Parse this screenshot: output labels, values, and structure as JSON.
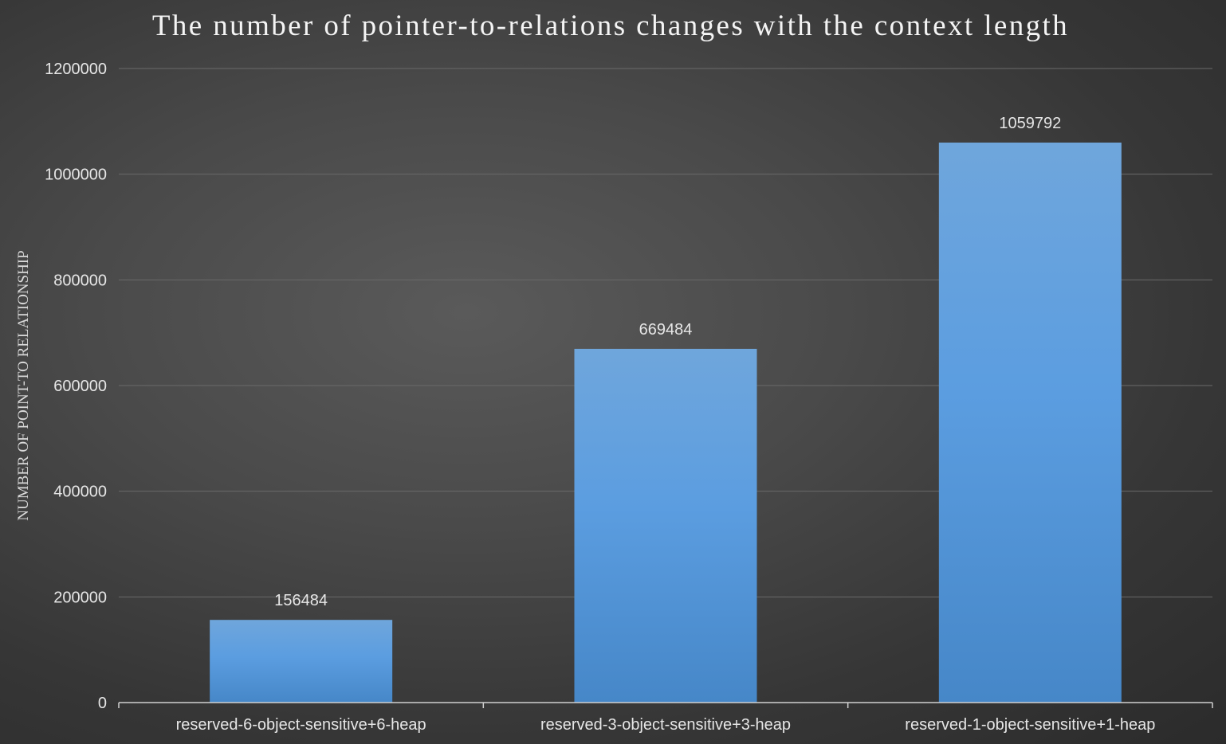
{
  "chart_data": {
    "type": "bar",
    "title": "The number of pointer-to-relations changes with the context length",
    "xlabel": "",
    "ylabel": "NUMBER OF POINT-TO RELATIONSHIP",
    "categories": [
      "reserved-6-object-sensitive+6-heap",
      "reserved-3-object-sensitive+3-heap",
      "reserved-1-object-sensitive+1-heap"
    ],
    "values": [
      156484,
      669484,
      1059792
    ],
    "data_labels": [
      "156484",
      "669484",
      "1059792"
    ],
    "ylim": [
      0,
      1200000
    ],
    "yticks": [
      0,
      200000,
      400000,
      600000,
      800000,
      1000000,
      1200000
    ],
    "ytick_labels": [
      "0",
      "200000",
      "400000",
      "600000",
      "800000",
      "1000000",
      "1200000"
    ],
    "grid": true,
    "legend": "none",
    "colors": {
      "bar_top": "#6fa6dc",
      "bar_mid": "#5b9de0",
      "bar_bottom": "#4687c8",
      "background": "#444444",
      "text": "#e6e6e6"
    }
  }
}
